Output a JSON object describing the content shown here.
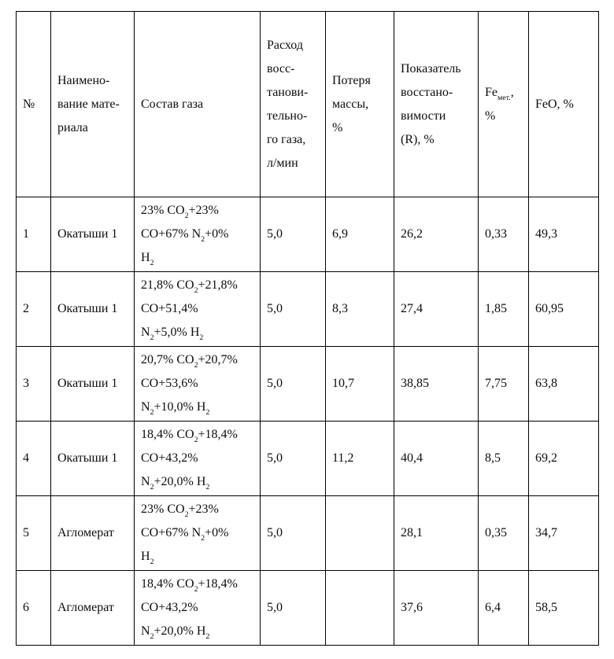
{
  "table": {
    "headers": [
      {
        "key": "num",
        "label": "№"
      },
      {
        "key": "material",
        "label": "Наимено-\nвание мате-\nриала"
      },
      {
        "key": "gas",
        "label": "Состав газа"
      },
      {
        "key": "flow",
        "label": "Расход\nвосс-\nтанови-\nтельно-\nго газа,\nл/мин"
      },
      {
        "key": "mass_loss",
        "label": "Потеря\nмассы,\n%"
      },
      {
        "key": "reducibility",
        "label": "Показатель\nвосстано-\nвимости\n(R), %"
      },
      {
        "key": "fe_met",
        "label": "Fe_{мет.},\n%"
      },
      {
        "key": "feo",
        "label": "FeO, %"
      }
    ],
    "rows": [
      {
        "num": "1",
        "material": "Окатыши 1",
        "gas": "23% CO_{2}+23%\nCO+67% N_{2}+0%\nH_{2}",
        "flow": "5,0",
        "mass_loss": "6,9",
        "reducibility": "26,2",
        "fe_met": "0,33",
        "feo": "49,3"
      },
      {
        "num": "2",
        "material": "Окатыши 1",
        "gas": "21,8% CO_{2}+21,8%\nCO+51,4%\nN_{2}+5,0% H_{2}",
        "flow": "5,0",
        "mass_loss": "8,3",
        "reducibility": "27,4",
        "fe_met": "1,85",
        "feo": "60,95"
      },
      {
        "num": "3",
        "material": "Окатыши 1",
        "gas": "20,7% CO_{2}+20,7%\nCO+53,6%\nN_{2}+10,0% H_{2}",
        "flow": "5,0",
        "mass_loss": "10,7",
        "reducibility": "38,85",
        "fe_met": "7,75",
        "feo": "63,8"
      },
      {
        "num": "4",
        "material": "Окатыши 1",
        "gas": "18,4% CO_{2}+18,4%\nCO+43,2%\nN_{2}+20,0% H_{2}",
        "flow": "5,0",
        "mass_loss": "11,2",
        "reducibility": "40,4",
        "fe_met": "8,5",
        "feo": "69,2"
      },
      {
        "num": "5",
        "material": "Агломерат",
        "gas": "23% CO_{2}+23%\nCO+67% N_{2}+0%\nH_{2}",
        "flow": "5,0",
        "mass_loss": "",
        "reducibility": "28,1",
        "fe_met": "0,35",
        "feo": "34,7"
      },
      {
        "num": "6",
        "material": "Агломерат",
        "gas": "18,4% CO_{2}+18,4%\nCO+43,2%\nN_{2}+20,0% H_{2}",
        "flow": "5,0",
        "mass_loss": "",
        "reducibility": "37,6",
        "fe_met": "6,4",
        "feo": "58,5"
      }
    ]
  }
}
